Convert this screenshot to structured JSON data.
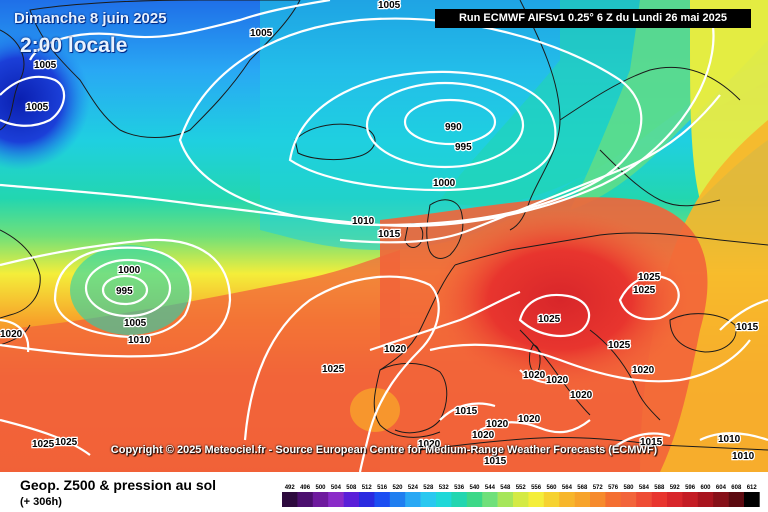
{
  "header": {
    "date_title": "Dimanche 8 juin 2025",
    "time_title": "2:00 locale",
    "run_info": "Run ECMWF AIFSv1 0.25° 6 Z du Lundi 26 mai 2025"
  },
  "copyright": "Copyright © 2025 Meteociel.fr - Source European Centre for Medium-Range Weather Forecasts (ECMWF)",
  "footer": {
    "title": "Geop. Z500 & pression au sol",
    "subtitle": "(+ 306h)"
  },
  "colors": {
    "ocean_deep": "#0a1fb0",
    "blue": "#1f7ef0",
    "light_blue": "#29b6f6",
    "cyan": "#1fd0e0",
    "teal": "#22d6b0",
    "green": "#6fe07a",
    "yellow": "#f4ee3a",
    "orange": "#f7a32a",
    "red_orange": "#f2643a",
    "red": "#e8352e",
    "isobar": "#ffffff",
    "coast": "#1b1b1b"
  },
  "isobar_labels": [
    {
      "text": "1005"
    },
    {
      "text": "1005"
    },
    {
      "text": "1005"
    },
    {
      "text": "1005"
    },
    {
      "text": "990"
    },
    {
      "text": "995"
    },
    {
      "text": "1000"
    },
    {
      "text": "1010"
    },
    {
      "text": "1015"
    },
    {
      "text": "1000"
    },
    {
      "text": "995"
    },
    {
      "text": "1005"
    },
    {
      "text": "1010"
    },
    {
      "text": "1020"
    },
    {
      "text": "1025"
    },
    {
      "text": "1020"
    },
    {
      "text": "1025"
    },
    {
      "text": "1025"
    },
    {
      "text": "1025"
    },
    {
      "text": "1025"
    },
    {
      "text": "1015"
    },
    {
      "text": "1020"
    },
    {
      "text": "1020"
    },
    {
      "text": "1020"
    },
    {
      "text": "1020"
    },
    {
      "text": "1015"
    },
    {
      "text": "1020"
    },
    {
      "text": "1020"
    },
    {
      "text": "1020"
    },
    {
      "text": "1015"
    },
    {
      "text": "1015"
    },
    {
      "text": "1025"
    },
    {
      "text": "1025"
    },
    {
      "text": "1010"
    },
    {
      "text": "1010"
    },
    {
      "text": "1020"
    }
  ],
  "color_scale": {
    "labels": [
      "492",
      "496",
      "500",
      "504",
      "508",
      "512",
      "516",
      "520",
      "524",
      "528",
      "532",
      "536",
      "540",
      "544",
      "548",
      "552",
      "556",
      "560",
      "564",
      "568",
      "572",
      "576",
      "580",
      "584",
      "588",
      "592",
      "596",
      "600",
      "604",
      "608",
      "612"
    ],
    "colors": [
      "#2d0a3e",
      "#4b0f6e",
      "#6e1a9e",
      "#8a2bc8",
      "#5a1fd8",
      "#2a2ae0",
      "#1b4ef2",
      "#1f7ef0",
      "#29a8f4",
      "#29c8f0",
      "#1fd8d8",
      "#22d6b0",
      "#3cd888",
      "#6fe07a",
      "#a6e65a",
      "#d4ea44",
      "#f4ee3a",
      "#f6d230",
      "#f7b62b",
      "#f7a32a",
      "#f68a2c",
      "#f46e30",
      "#f2643a",
      "#ee4c34",
      "#e8352e",
      "#d8262a",
      "#c41c24",
      "#a8141e",
      "#861018",
      "#5c0a10",
      "#000000"
    ]
  }
}
